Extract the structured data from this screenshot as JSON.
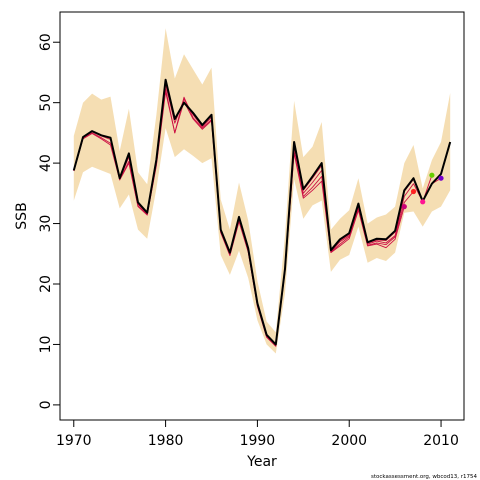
{
  "chart_data": {
    "type": "line",
    "title": "",
    "xlabel": "Year",
    "ylabel": "SSB",
    "xlim": [
      1968.5,
      2012.5
    ],
    "ylim": [
      -2.5,
      65
    ],
    "x_ticks": [
      1970,
      1980,
      1990,
      2000,
      2010
    ],
    "y_ticks": [
      0,
      10,
      20,
      30,
      40,
      50,
      60
    ],
    "grid": false,
    "legend": "none",
    "annotation": "stockassessment.org, wbcod13, r1754",
    "colors": {
      "band": "#F5DEB3",
      "final_line": "#000000",
      "retro_line": "#CC1144",
      "terminal_points": [
        "#CC0077",
        "#FF2222",
        "#FF1493",
        "#66CC00",
        "#7700CC"
      ]
    },
    "confidence_band": {
      "x": [
        1970,
        1971,
        1972,
        1973,
        1974,
        1975,
        1976,
        1977,
        1978,
        1979,
        1980,
        1981,
        1982,
        1983,
        1984,
        1985,
        1986,
        1987,
        1988,
        1989,
        1990,
        1991,
        1992,
        1993,
        1994,
        1995,
        1996,
        1997,
        1998,
        1999,
        2000,
        2001,
        2002,
        2003,
        2004,
        2005,
        2006,
        2007,
        2008,
        2009,
        2010,
        2011
      ],
      "lower": [
        33.8,
        38.5,
        39.4,
        38.8,
        38.2,
        32.5,
        34.8,
        29.0,
        27.5,
        35.8,
        45.8,
        41.0,
        42.3,
        41.2,
        40.0,
        40.8,
        24.8,
        21.5,
        25.5,
        21.0,
        14.0,
        10.0,
        8.5,
        18.5,
        37.3,
        30.8,
        33.0,
        33.8,
        22.0,
        24.0,
        24.8,
        29.5,
        23.5,
        24.3,
        23.8,
        25.2,
        31.8,
        32.0,
        29.5,
        32.0,
        32.8,
        35.5
      ],
      "upper": [
        44.5,
        50.0,
        51.5,
        50.5,
        51.0,
        42.0,
        49.0,
        38.5,
        36.5,
        48.0,
        62.3,
        54.0,
        58.0,
        55.5,
        53.0,
        55.8,
        34.0,
        29.0,
        36.8,
        30.5,
        20.5,
        13.8,
        12.0,
        28.0,
        50.3,
        41.0,
        42.7,
        46.8,
        29.0,
        30.8,
        32.2,
        37.5,
        30.0,
        31.0,
        31.5,
        32.8,
        40.0,
        43.0,
        35.8,
        40.5,
        43.5,
        51.6
      ]
    },
    "series": [
      {
        "x": [
          1970,
          1971,
          1972,
          1973,
          1974,
          1975,
          1976,
          1977,
          1978,
          1979,
          1980,
          1981,
          1982,
          1983,
          1984,
          1985,
          1986,
          1987,
          1988,
          1989,
          1990,
          1991,
          1992,
          1993,
          1994,
          1995,
          1996,
          1997,
          1998,
          1999,
          2000,
          2001,
          2002,
          2003,
          2004,
          2005,
          2006,
          2007,
          2008,
          2009,
          2010,
          2011
        ],
        "values": [
          38.8,
          44.3,
          45.3,
          44.6,
          44.2,
          37.5,
          41.6,
          33.5,
          31.8,
          40.6,
          53.8,
          47.3,
          50.0,
          48.3,
          46.3,
          48.0,
          29.0,
          25.2,
          31.1,
          25.9,
          16.8,
          11.6,
          10.0,
          22.5,
          43.5,
          35.7,
          37.8,
          40.0,
          25.6,
          27.4,
          28.4,
          33.3,
          26.9,
          27.5,
          27.4,
          28.8,
          35.5,
          37.5,
          33.7,
          36.6,
          38.2,
          43.5
        ]
      },
      {
        "x": [
          1970,
          1971,
          1972,
          1973,
          1974,
          1975,
          1976,
          1977,
          1978,
          1979,
          1980,
          1981,
          1982,
          1983,
          1984,
          1985,
          1986,
          1987,
          1988,
          1989,
          1990,
          1991,
          1992,
          1993,
          1994,
          1995,
          1996,
          1997,
          1998,
          1999,
          2000,
          2001,
          2002,
          2003,
          2004,
          2005,
          2006,
          2007,
          2008,
          2009,
          2010
        ],
        "values": [
          38.8,
          44.3,
          45.3,
          44.6,
          44.2,
          37.5,
          41.6,
          33.5,
          31.8,
          40.6,
          53.8,
          47.3,
          50.0,
          48.3,
          46.3,
          48.0,
          29.0,
          25.2,
          31.1,
          25.9,
          16.8,
          11.6,
          10.0,
          22.5,
          43.5,
          35.7,
          37.8,
          40.0,
          25.6,
          27.4,
          28.4,
          33.3,
          26.9,
          27.5,
          27.4,
          28.8,
          35.5,
          37.5,
          33.7,
          36.6,
          37.5
        ]
      },
      {
        "x": [
          1970,
          1971,
          1972,
          1973,
          1974,
          1975,
          1976,
          1977,
          1978,
          1979,
          1980,
          1981,
          1982,
          1983,
          1984,
          1985,
          1986,
          1987,
          1988,
          1989,
          1990,
          1991,
          1992,
          1993,
          1994,
          1995,
          1996,
          1997,
          1998,
          1999,
          2000,
          2001,
          2002,
          2003,
          2004,
          2005,
          2006,
          2007,
          2008,
          2009
        ],
        "values": [
          38.8,
          44.3,
          45.3,
          44.6,
          44.2,
          37.5,
          41.6,
          33.5,
          31.8,
          40.6,
          53.8,
          47.3,
          50.0,
          48.3,
          46.3,
          48.0,
          29.0,
          25.2,
          31.1,
          25.9,
          16.8,
          11.6,
          10.0,
          22.5,
          43.5,
          35.5,
          37.5,
          39.6,
          25.5,
          27.2,
          28.2,
          33.0,
          26.8,
          27.3,
          27.2,
          28.6,
          35.3,
          37.3,
          33.6,
          38.0
        ]
      },
      {
        "x": [
          1970,
          1971,
          1972,
          1973,
          1974,
          1975,
          1976,
          1977,
          1978,
          1979,
          1980,
          1981,
          1982,
          1983,
          1984,
          1985,
          1986,
          1987,
          1988,
          1989,
          1990,
          1991,
          1992,
          1993,
          1994,
          1995,
          1996,
          1997,
          1998,
          1999,
          2000,
          2001,
          2002,
          2003,
          2004,
          2005,
          2006,
          2007,
          2008
        ],
        "values": [
          38.8,
          44.2,
          45.2,
          44.5,
          43.9,
          37.4,
          41.0,
          33.2,
          31.6,
          40.3,
          53.0,
          46.6,
          50.6,
          48.0,
          46.0,
          47.6,
          28.8,
          25.0,
          30.8,
          25.7,
          16.6,
          11.5,
          9.9,
          22.4,
          42.8,
          35.0,
          36.8,
          38.8,
          25.4,
          27.0,
          28.0,
          32.8,
          26.6,
          27.1,
          26.8,
          28.0,
          34.5,
          36.6,
          33.6
        ]
      },
      {
        "x": [
          1970,
          1971,
          1972,
          1973,
          1974,
          1975,
          1976,
          1977,
          1978,
          1979,
          1980,
          1981,
          1982,
          1983,
          1984,
          1985,
          1986,
          1987,
          1988,
          1989,
          1990,
          1991,
          1992,
          1993,
          1994,
          1995,
          1996,
          1997,
          1998,
          1999,
          2000,
          2001,
          2002,
          2003,
          2004,
          2005,
          2006,
          2007
        ],
        "values": [
          38.7,
          44.1,
          45.0,
          44.2,
          43.3,
          37.3,
          40.3,
          32.9,
          31.5,
          39.8,
          52.3,
          45.0,
          50.9,
          47.5,
          45.8,
          47.2,
          28.6,
          24.8,
          30.5,
          25.4,
          16.4,
          11.3,
          9.8,
          22.2,
          42.0,
          34.5,
          36.0,
          37.8,
          25.3,
          26.6,
          27.8,
          32.5,
          26.4,
          26.8,
          26.5,
          27.8,
          33.5,
          35.3
        ]
      },
      {
        "x": [
          1970,
          1971,
          1972,
          1973,
          1974,
          1975,
          1976,
          1977,
          1978,
          1979,
          1980,
          1981,
          1982,
          1983,
          1984,
          1985,
          1986,
          1987,
          1988,
          1989,
          1990,
          1991,
          1992,
          1993,
          1994,
          1995,
          1996,
          1997,
          1998,
          1999,
          2000,
          2001,
          2002,
          2003,
          2004,
          2005,
          2006
        ],
        "values": [
          38.7,
          44.0,
          44.9,
          44.0,
          43.0,
          37.2,
          40.0,
          32.8,
          31.4,
          39.6,
          51.8,
          45.0,
          50.2,
          47.3,
          45.6,
          47.0,
          28.5,
          24.7,
          30.3,
          25.3,
          16.3,
          11.2,
          9.7,
          22.0,
          41.6,
          34.2,
          35.5,
          37.0,
          25.2,
          26.3,
          27.5,
          32.2,
          26.3,
          26.6,
          26.0,
          27.4,
          32.8
        ]
      }
    ],
    "terminal_points": [
      {
        "x": 2006,
        "y": 32.8
      },
      {
        "x": 2007,
        "y": 35.3
      },
      {
        "x": 2008,
        "y": 33.6
      },
      {
        "x": 2009,
        "y": 38.0
      },
      {
        "x": 2010,
        "y": 37.5
      }
    ]
  }
}
